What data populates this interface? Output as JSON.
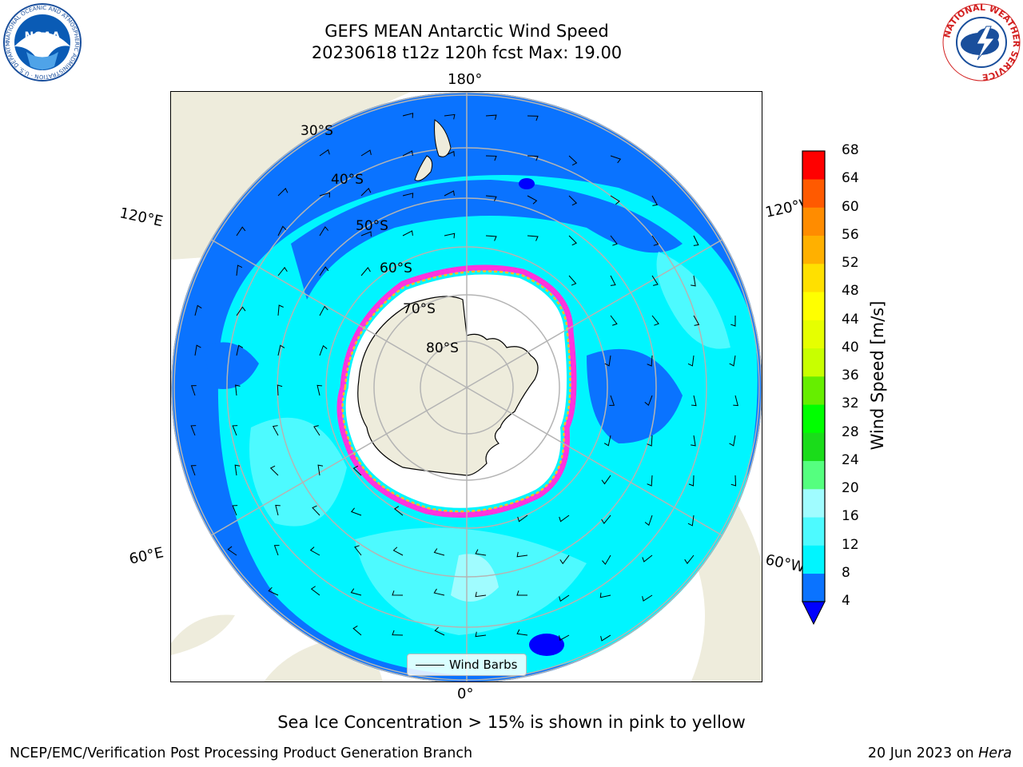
{
  "title": {
    "line1": "GEFS MEAN Antarctic Wind Speed",
    "line2": "20230618 t12z 120h fcst   Max: 19.00"
  },
  "map": {
    "projection": "south-polar-stereographic",
    "longitude_labels": {
      "top": "180°",
      "upper_left": "120°E",
      "upper_right": "120°W",
      "lower_left": "60°E",
      "lower_right": "60°W",
      "bottom": "0°"
    },
    "latitude_labels": [
      "30°S",
      "40°S",
      "50°S",
      "60°S",
      "70°S",
      "80°S"
    ],
    "colors": {
      "land": "#eeecdc",
      "ocean_dark_blue": "#0a73ff",
      "ocean_cyan": "#00f5ff",
      "ocean_light_cyan": "#4dfaff",
      "ocean_pale_cyan": "#a0fcff",
      "graticule": "#b4b4b4",
      "sea_ice_pink": "#ff33dd",
      "sea_ice_yellow": "#ffc020"
    }
  },
  "legend": {
    "label": "Wind Barbs"
  },
  "colorbar": {
    "label": "Wind Speed [m/s]",
    "ticks": [
      "4",
      "8",
      "12",
      "16",
      "20",
      "24",
      "28",
      "32",
      "36",
      "40",
      "44",
      "48",
      "52",
      "56",
      "60",
      "64",
      "68"
    ],
    "colors": [
      "#0a73ff",
      "#00f5ff",
      "#4dfaff",
      "#a0fcff",
      "#55ff7f",
      "#1adc1a",
      "#00ff00",
      "#66ee00",
      "#c8ff00",
      "#e6ff00",
      "#ffff00",
      "#ffe000",
      "#ffb000",
      "#ff8c00",
      "#ff5a00",
      "#ff2800"
    ],
    "extend_color": "#0000ff",
    "top_color": "#ff0000"
  },
  "caption": "Sea Ice Concentration > 15% is shown in pink to yellow",
  "footer": {
    "left": "NCEP/EMC/Verification Post Processing Product Generation Branch",
    "right_date": "20 Jun 2023 on",
    "right_host": "Hera"
  },
  "logos": {
    "noaa": "NOAA",
    "noaa_ring": "NATIONAL OCEANIC AND ATMOSPHERIC ADMINISTRATION · U.S. DEPARTMENT OF COMMERCE",
    "nws_ring": "NATIONAL WEATHER SERVICE"
  }
}
